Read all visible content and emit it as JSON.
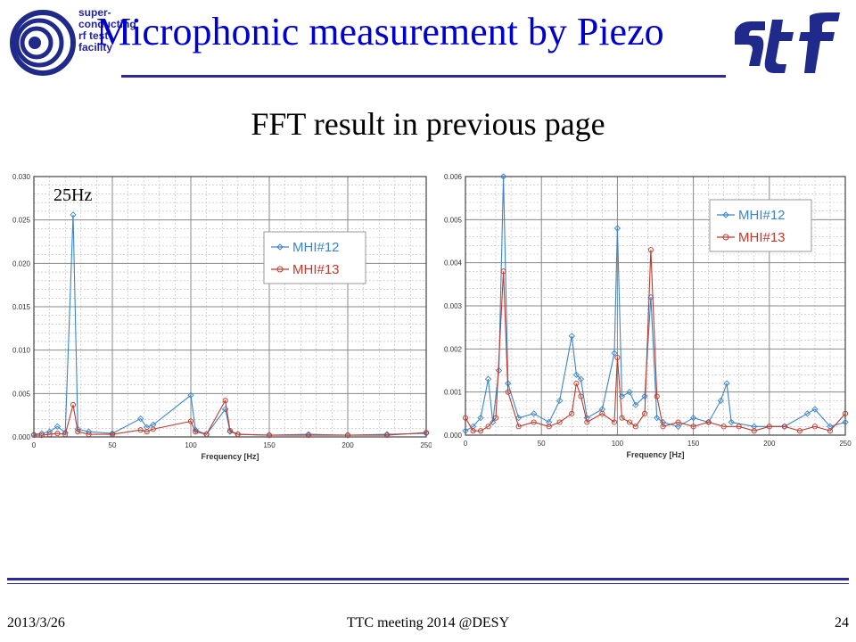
{
  "header": {
    "logo_text": "super-\nconducting\nrf test\nfacility",
    "title": "Microphonic measurement by Piezo",
    "sttf_logo_text": "STF"
  },
  "subtitle": "FFT result in previous page",
  "annotation": "25Hz",
  "colors": {
    "title": "#0000cc",
    "rule": "#2a2a9a",
    "series1": "#3d85c6",
    "series2": "#c0392b"
  },
  "chart_data": [
    {
      "type": "line",
      "xlabel": "Frequency [Hz]",
      "ylabel": "",
      "xlim": [
        0,
        250
      ],
      "ylim": [
        0,
        0.03
      ],
      "xticks": [
        0,
        50,
        100,
        150,
        200,
        250
      ],
      "yticks": [
        "0.000",
        "0.005",
        "0.010",
        "0.015",
        "0.020",
        "0.025",
        "0.030"
      ],
      "grid": true,
      "legend": "top-right",
      "series": [
        {
          "name": "MHI#12",
          "x": [
            0,
            5,
            10,
            15,
            20,
            25,
            28,
            35,
            50,
            68,
            72,
            76,
            100,
            103,
            110,
            122,
            125,
            130,
            150,
            175,
            200,
            225,
            250
          ],
          "y": [
            0.0003,
            0.0004,
            0.0006,
            0.0012,
            0.0005,
            0.0256,
            0.0009,
            0.0006,
            0.0004,
            0.0021,
            0.0011,
            0.0014,
            0.0048,
            0.0008,
            0.0003,
            0.0032,
            0.0006,
            0.0003,
            0.0002,
            0.0003,
            0.0002,
            0.0003,
            0.0004
          ]
        },
        {
          "name": "MHI#13",
          "x": [
            0,
            5,
            10,
            15,
            20,
            25,
            28,
            35,
            50,
            68,
            72,
            76,
            100,
            103,
            110,
            122,
            125,
            130,
            150,
            175,
            200,
            225,
            250
          ],
          "y": [
            0.0002,
            0.0002,
            0.0003,
            0.0004,
            0.0003,
            0.0037,
            0.0006,
            0.0003,
            0.0003,
            0.0008,
            0.0006,
            0.0009,
            0.0018,
            0.0006,
            0.0003,
            0.0042,
            0.0007,
            0.0003,
            0.0002,
            0.0002,
            0.0002,
            0.0002,
            0.0005
          ]
        }
      ]
    },
    {
      "type": "line",
      "xlabel": "Frequency [Hz]",
      "ylabel": "",
      "xlim": [
        0,
        250
      ],
      "ylim": [
        0,
        0.006
      ],
      "xticks": [
        0,
        50,
        100,
        150,
        200,
        250
      ],
      "yticks": [
        "0.000",
        "0.001",
        "0.002",
        "0.003",
        "0.004",
        "0.005",
        "0.006"
      ],
      "grid": true,
      "legend": "top-right",
      "series": [
        {
          "name": "MHI#12",
          "x": [
            0,
            5,
            10,
            15,
            18,
            22,
            25,
            28,
            35,
            45,
            55,
            62,
            70,
            73,
            76,
            80,
            90,
            98,
            100,
            103,
            108,
            112,
            118,
            122,
            126,
            130,
            140,
            150,
            160,
            168,
            172,
            175,
            190,
            210,
            225,
            230,
            240,
            250
          ],
          "y": [
            0.0001,
            0.0002,
            0.0004,
            0.0013,
            0.0003,
            0.0015,
            0.006,
            0.0012,
            0.0004,
            0.0005,
            0.0003,
            0.0008,
            0.0023,
            0.0014,
            0.0013,
            0.0004,
            0.0006,
            0.0019,
            0.0048,
            0.0009,
            0.001,
            0.0007,
            0.0009,
            0.0032,
            0.0004,
            0.0003,
            0.0002,
            0.0004,
            0.0003,
            0.0008,
            0.0012,
            0.0003,
            0.0002,
            0.0002,
            0.0005,
            0.0006,
            0.0002,
            0.0003
          ]
        },
        {
          "name": "MHI#13",
          "x": [
            0,
            5,
            10,
            15,
            20,
            25,
            28,
            35,
            45,
            55,
            62,
            70,
            73,
            76,
            80,
            90,
            98,
            100,
            103,
            108,
            112,
            118,
            122,
            126,
            130,
            140,
            150,
            160,
            170,
            180,
            190,
            200,
            210,
            220,
            230,
            240,
            250
          ],
          "y": [
            0.0004,
            0.0001,
            0.0001,
            0.0002,
            0.0004,
            0.0038,
            0.001,
            0.0002,
            0.0003,
            0.0002,
            0.0003,
            0.0005,
            0.0012,
            0.0009,
            0.0003,
            0.0005,
            0.0003,
            0.0018,
            0.0004,
            0.0003,
            0.0002,
            0.0005,
            0.0043,
            0.0009,
            0.0002,
            0.0003,
            0.0002,
            0.0003,
            0.0002,
            0.0002,
            0.0001,
            0.0002,
            0.0002,
            0.0001,
            0.0002,
            0.0001,
            0.0005
          ]
        }
      ]
    }
  ],
  "footer": {
    "date": "2013/3/26",
    "center": "TTC meeting 2014 @DESY",
    "page": "24"
  }
}
